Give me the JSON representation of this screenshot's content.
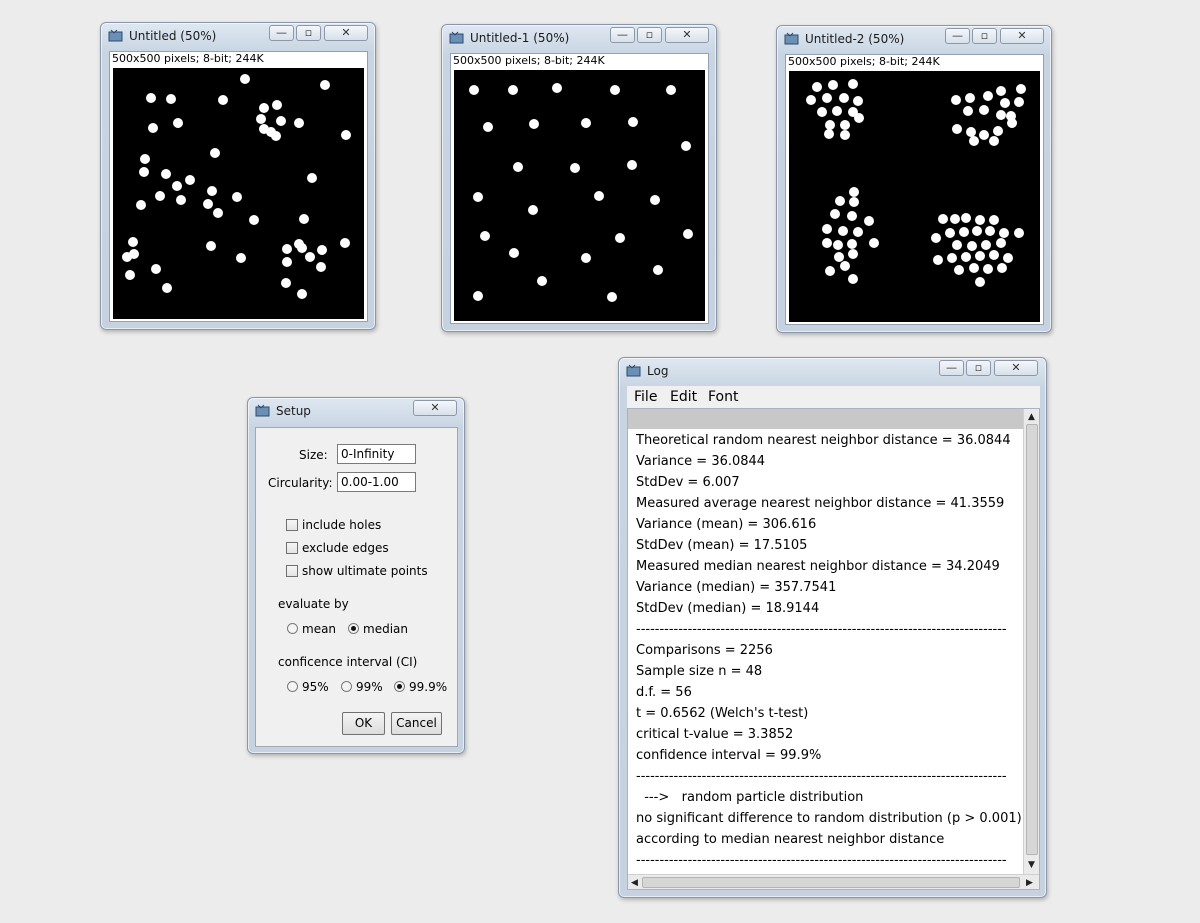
{
  "windows": {
    "untitled": {
      "title": "Untitled (50%)",
      "info": "500x500 pixels; 8-bit; 244K"
    },
    "untitled1": {
      "title": "Untitled-1 (50%)",
      "info": "500x500 pixels; 8-bit; 244K"
    },
    "untitled2": {
      "title": "Untitled-2 (50%)",
      "info": "500x500 pixels; 8-bit; 244K"
    }
  },
  "controls": {
    "minimize": "—",
    "maximize": "▫",
    "close": "✕"
  },
  "setup": {
    "title": "Setup",
    "size_label": "Size:",
    "size_value": "0-Infinity",
    "circularity_label": "Circularity:",
    "circularity_value": "0.00-1.00",
    "include_holes": "include holes",
    "exclude_edges": "exclude edges",
    "show_ultimate_points": "show ultimate points",
    "evaluate_by": "evaluate by",
    "mean": "mean",
    "median": "median",
    "evaluate_selected": "median",
    "ci_label": "conficence interval (CI)",
    "ci_95": "95%",
    "ci_99": "99%",
    "ci_999": "99.9%",
    "ci_selected": "99.9%",
    "ok": "OK",
    "cancel": "Cancel"
  },
  "log": {
    "title": "Log",
    "menu": [
      "File",
      "Edit",
      "Font"
    ],
    "lines": [
      "Theoretical random nearest neighbor distance = 36.0844",
      "Variance = 36.0844",
      "StdDev = 6.007",
      "Measured average nearest neighbor distance = 41.3559",
      "Variance (mean) = 306.616",
      "StdDev (mean) = 17.5105",
      "Measured median nearest neighbor distance = 34.2049",
      "Variance (median) = 357.7541",
      "StdDev (median) = 18.9144",
      "-------------------------------------------------------------------------------",
      "Comparisons = 2256",
      "Sample size n = 48",
      "d.f. = 56",
      "t = 0.6562 (Welch's t-test)",
      "critical t-value = 3.3852",
      "confidence interval = 99.9%",
      "-------------------------------------------------------------------------------",
      "  --->   random particle distribution",
      "no significant difference to random distribution (p > 0.001)",
      "according to median nearest neighbor distance",
      "-------------------------------------------------------------------------------"
    ]
  },
  "colors": {
    "window_frame": "#c6d2e0",
    "image_background": "#000000",
    "particle": "#ffffff"
  }
}
